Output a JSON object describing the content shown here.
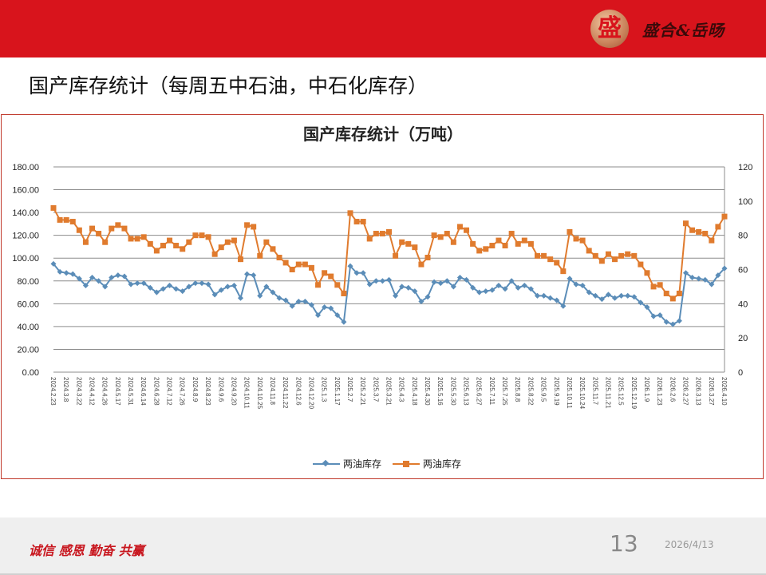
{
  "header": {
    "logo_glyph": "盛",
    "brand_text": "盛合&岳旸",
    "brand_color": "#d8141c"
  },
  "page": {
    "title": "国产库存统计（每周五中石油，中石化库存）"
  },
  "footer": {
    "slogan": "诚信 感恩 勤奋 共赢",
    "page_number": "13",
    "date": "2026/4/13"
  },
  "chart_data": {
    "type": "line",
    "title": "国产库存统计（万吨）",
    "xlabel": "",
    "ylabel": "",
    "ylim": [
      0,
      180
    ],
    "y2lim": [
      0,
      120
    ],
    "y_ticks": [
      "0.00",
      "20.00",
      "40.00",
      "60.00",
      "80.00",
      "100.00",
      "120.00",
      "140.00",
      "160.00",
      "180.00"
    ],
    "y2_ticks": [
      "0",
      "20",
      "40",
      "60",
      "80",
      "100",
      "120"
    ],
    "grid": true,
    "legend_position": "bottom",
    "x_tick_labels": [
      "2024.2.23",
      "2024.3.8",
      "2024.3.22",
      "2024.4.12",
      "2024.4.26",
      "2024.5.17",
      "2024.5.31",
      "2024.6.14",
      "2024.6.28",
      "2024.7.12",
      "2024.7.26",
      "2024.8.9",
      "2024.8.23",
      "2024.9.6",
      "2024.9.20",
      "2024.10.11",
      "2024.10.25",
      "2024.11.8",
      "2024.11.22",
      "2024.12.6",
      "2024.12.20",
      "2025.1.3",
      "2025.1.17",
      "2025.2.7",
      "2025.2.21",
      "2025.3.7",
      "2025.3.21",
      "2025.4.3",
      "2025.4.18",
      "2025.4.30",
      "2025.5.16",
      "2025.5.30",
      "2025.6.13",
      "2025.6.27",
      "2025.7.11",
      "2025.7.25",
      "2025.8.8",
      "2025.8.22",
      "2025.9.5",
      "2025.9.19",
      "2025.10.11",
      "2025.10.24",
      "2025.11.7",
      "2025.11.21",
      "2025.12.5",
      "2025.12.19",
      "2026.1.9",
      "2026.1.23",
      "2026.2.6",
      "2026.2.27",
      "2026.3.13",
      "2026.3.27",
      "2026.4.10"
    ],
    "series": [
      {
        "name": "两油库存",
        "axis": "left",
        "color": "#5b8db8",
        "marker": "diamond",
        "values": [
          95,
          88,
          87,
          86,
          82,
          76,
          83,
          80,
          75,
          83,
          85,
          84,
          77,
          78,
          78,
          74,
          70,
          73,
          76,
          73,
          71,
          75,
          78,
          78,
          77,
          68,
          72,
          75,
          76,
          65,
          86,
          85,
          67,
          75,
          70,
          65,
          63,
          58,
          62,
          62,
          59,
          50,
          57,
          56,
          50,
          44,
          93,
          87,
          87,
          77,
          80,
          80,
          81,
          67,
          75,
          74,
          71,
          62,
          66,
          79,
          78,
          80,
          75,
          83,
          81,
          74,
          70,
          71,
          72,
          76,
          73,
          80,
          74,
          76,
          73,
          67,
          67,
          65,
          63,
          58,
          82,
          77,
          76,
          70,
          67,
          64,
          68,
          65,
          67,
          67,
          66,
          61,
          57,
          49,
          50,
          44,
          42,
          45,
          87,
          83,
          82,
          81,
          77,
          85,
          91
        ]
      },
      {
        "name": "两油库存",
        "axis": "right",
        "color": "#e07b2e",
        "marker": "square",
        "values": [
          96,
          89,
          89,
          88,
          83,
          76,
          84,
          81,
          76,
          84,
          86,
          84,
          78,
          78,
          79,
          75,
          71,
          74,
          77,
          74,
          72,
          76,
          80,
          80,
          79,
          69,
          73,
          76,
          77,
          66,
          86,
          85,
          68,
          76,
          72,
          67,
          64,
          60,
          63,
          63,
          61,
          51,
          58,
          56,
          51,
          46,
          93,
          88,
          88,
          78,
          81,
          81,
          82,
          68,
          76,
          75,
          73,
          63,
          67,
          80,
          79,
          81,
          76,
          85,
          83,
          75,
          71,
          72,
          74,
          77,
          74,
          81,
          75,
          77,
          75,
          68,
          68,
          66,
          64,
          59,
          82,
          78,
          77,
          71,
          68,
          65,
          69,
          66,
          68,
          69,
          68,
          63,
          58,
          50,
          51,
          46,
          43,
          46,
          87,
          83,
          82,
          81,
          77,
          85,
          91
        ]
      }
    ]
  },
  "legend": [
    {
      "label": "两油库存",
      "color": "#5b8db8"
    },
    {
      "label": "两油库存",
      "color": "#e07b2e"
    }
  ]
}
